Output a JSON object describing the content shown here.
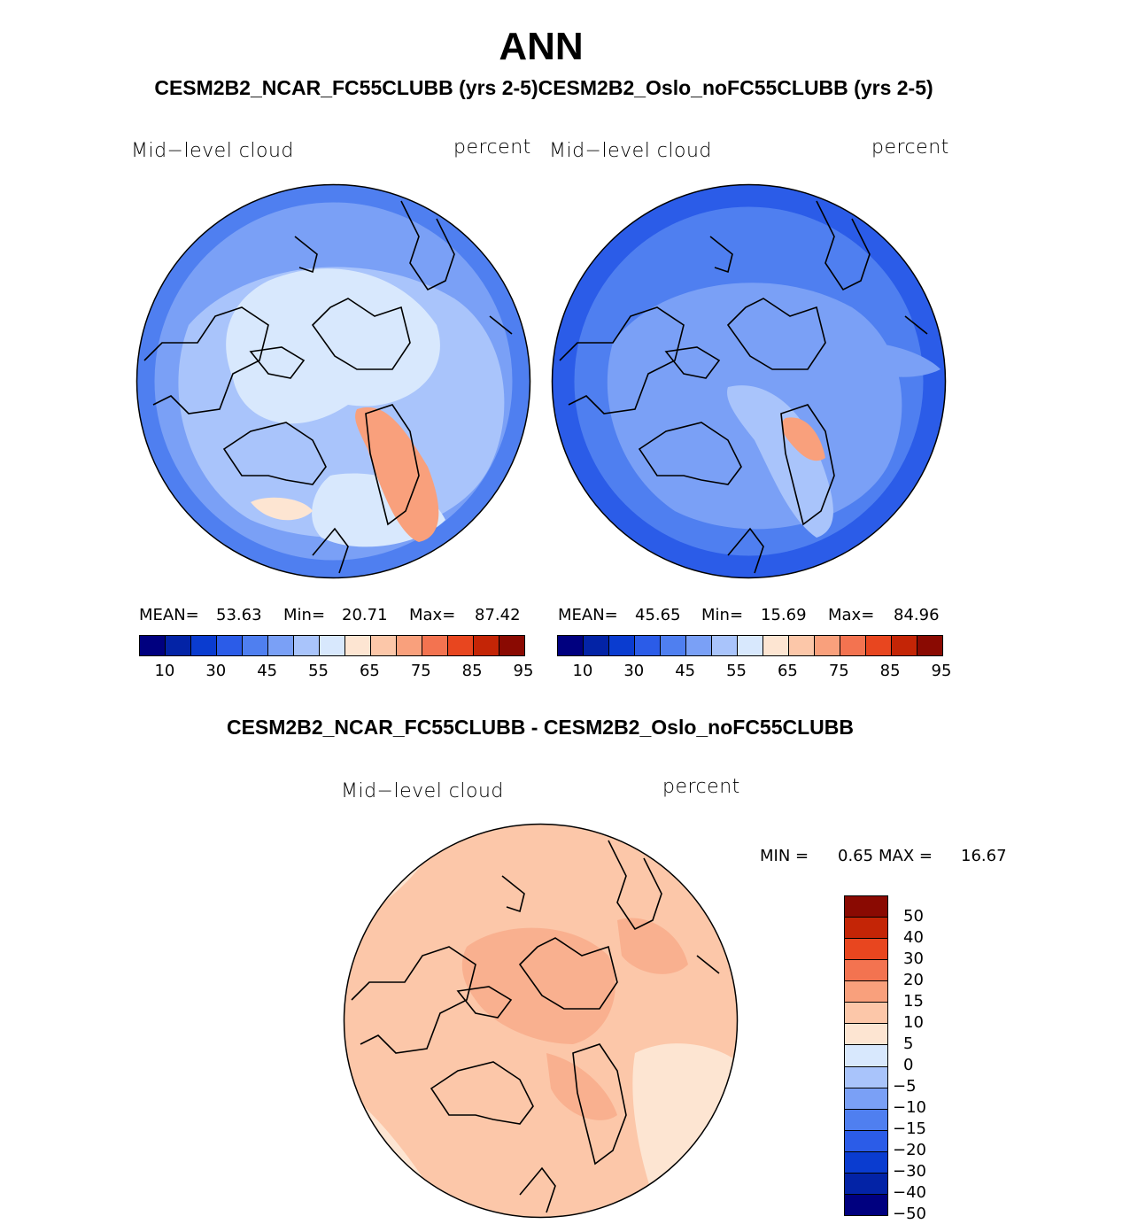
{
  "title": "ANN",
  "subtitle": "CESM2B2_NCAR_FC55CLUBB (yrs 2-5)CESM2B2_Oslo_noFC55CLUBB (yrs 2-5)",
  "difference_title": "CESM2B2_NCAR_FC55CLUBB - CESM2B2_Oslo_noFC55CLUBB",
  "panels": [
    {
      "variable_label": "Mid−level cloud",
      "units_label": "percent",
      "mean_label": "MEAN=",
      "mean_value": "53.63",
      "min_label": "Min=",
      "min_value": "20.71",
      "max_label": "Max=",
      "max_value": "87.42"
    },
    {
      "variable_label": "Mid−level cloud",
      "units_label": "percent",
      "mean_label": "MEAN=",
      "mean_value": "45.65",
      "min_label": "Min=",
      "min_value": "15.69",
      "max_label": "Max=",
      "max_value": "84.96"
    }
  ],
  "difference_panel": {
    "variable_label": "Mid−level cloud",
    "units_label": "percent",
    "min_label": "MIN =",
    "min_value": "0.65",
    "max_label": "MAX =",
    "max_value": "16.67"
  },
  "colorbar_top": {
    "colors": [
      "#00007f",
      "#0323a6",
      "#0a3cd0",
      "#2b5ce8",
      "#4f7ff0",
      "#7aa0f6",
      "#a9c4fb",
      "#d8e8fd",
      "#fde5d2",
      "#fcc7a9",
      "#f9a07c",
      "#f37350",
      "#e8461f",
      "#c42506",
      "#8a0a02"
    ],
    "tick_labels": [
      "10",
      "30",
      "45",
      "55",
      "65",
      "75",
      "85",
      "95"
    ]
  },
  "colorbar_diff": {
    "colors": [
      "#00007f",
      "#0323a6",
      "#0a3cd0",
      "#2b5ce8",
      "#4f7ff0",
      "#7aa0f6",
      "#a9c4fb",
      "#d8e8fd",
      "#fde5d2",
      "#fcc7a9",
      "#f9a07c",
      "#f37350",
      "#e8461f",
      "#c42506",
      "#8a0a02"
    ],
    "tick_labels": [
      "−50",
      "−40",
      "−30",
      "−20",
      "−15",
      "−10",
      "−5",
      "0",
      "5",
      "10",
      "15",
      "20",
      "30",
      "40",
      "50"
    ]
  },
  "map_colors": {
    "panel1_base": "#7aa0f6",
    "panel1_ring": "#4f7ff0",
    "panel1_mid": "#a9c4fb",
    "panel1_light": "#d8e8fd",
    "panel1_warm": "#f9a07c",
    "panel2_base": "#4f7ff0",
    "panel2_ring": "#2b5ce8",
    "panel2_mid": "#7aa0f6",
    "panel2_light": "#a9c4fb",
    "panel2_warm": "#f9a07c",
    "diff_base": "#fcc7a9",
    "diff_light": "#fde5d2",
    "diff_patch": "#f9b08f"
  }
}
